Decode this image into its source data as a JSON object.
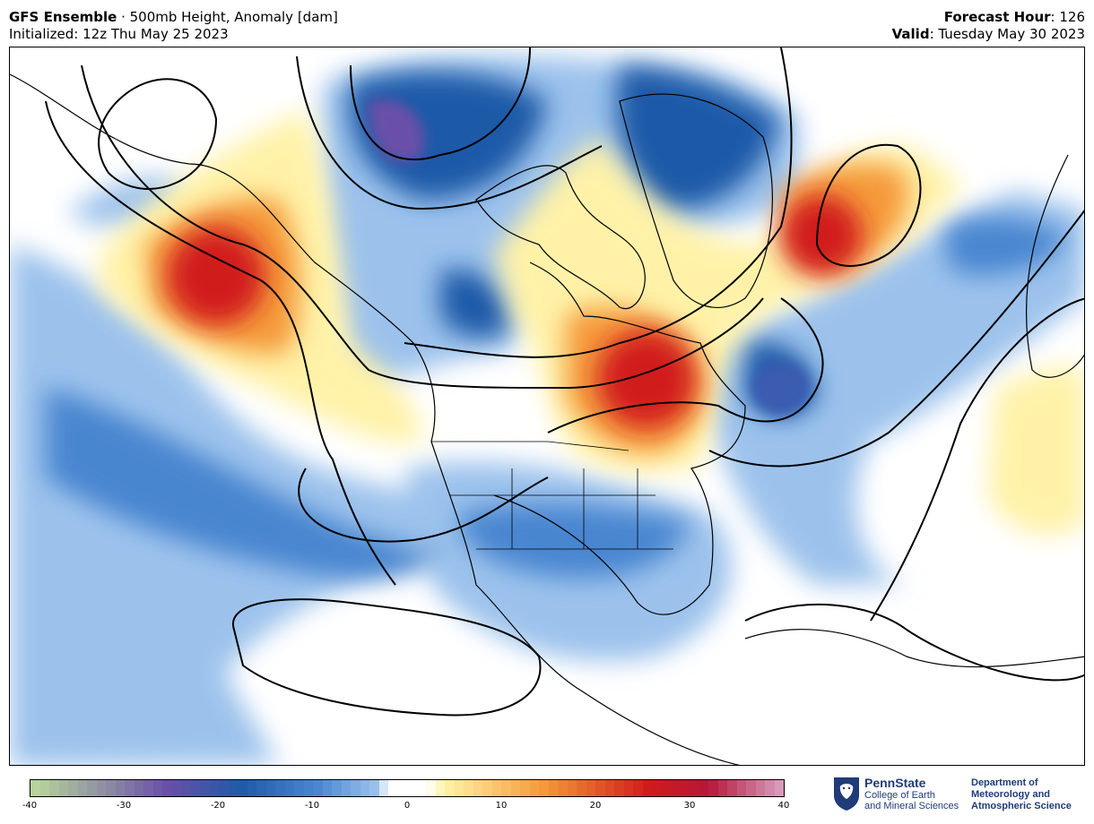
{
  "header": {
    "model": "GFS Ensemble",
    "separator": " · ",
    "product": "500mb Height, Anomaly [dam]",
    "initialized_label": "Initialized:",
    "initialized_value": "12z Thu May 25 2023",
    "forecast_hour_label": "Forecast Hour",
    "forecast_hour_value": "126",
    "valid_label": "Valid",
    "valid_value": "Tuesday May 30 2023"
  },
  "colorbar": {
    "ticks": [
      "-40",
      "-30",
      "-20",
      "-10",
      "0",
      "10",
      "20",
      "30",
      "40"
    ],
    "colors": {
      "deep_negative": "#b9d99b",
      "purple": "#6a4fa8",
      "dark_blue": "#1f5aa8",
      "mid_blue": "#4a86d0",
      "light_blue": "#9cc2ec",
      "neutral": "#ffffff",
      "pale_yellow": "#fff2a8",
      "orange": "#f59a3a",
      "red": "#d11a1a",
      "dark_red": "#b5183a",
      "pink": "#d9a3c3"
    }
  },
  "logo": {
    "brand": "PennState",
    "college_line1": "College of Earth",
    "college_line2": "and Mineral Sciences",
    "dept_line1": "Department of",
    "dept_line2": "Meteorology and",
    "dept_line3": "Atmospheric Science",
    "icon": "nittany-lion-shield-icon"
  }
}
